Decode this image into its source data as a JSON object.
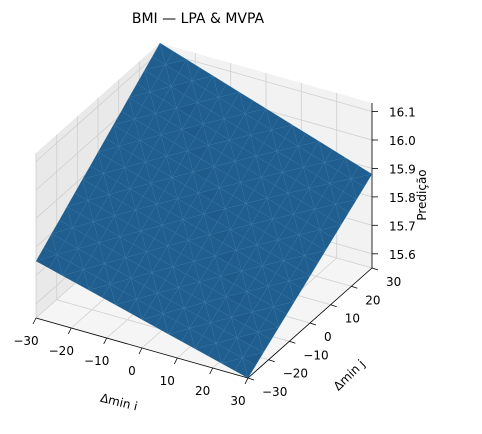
{
  "chart_data": {
    "type": "surface",
    "title": "BMI — LPA & MVPA",
    "xlabel": "Δmin i",
    "ylabel": "Δmin j",
    "zlabel": "Predição",
    "xlim": [
      -30,
      30
    ],
    "ylim": [
      -30,
      30
    ],
    "zlim": [
      15.55,
      16.13
    ],
    "x_ticks": [
      "−30",
      "−20",
      "−10",
      "0",
      "10",
      "20",
      "30"
    ],
    "y_ticks": [
      "−30",
      "−20",
      "−10",
      "0",
      "10",
      "20",
      "30"
    ],
    "z_ticks": [
      "15.6",
      "15.7",
      "15.8",
      "15.9",
      "16.0",
      "16.1"
    ],
    "surface_corners": [
      {
        "x": -30,
        "y": -30,
        "z": 15.75
      },
      {
        "x": 30,
        "y": -30,
        "z": 15.55
      },
      {
        "x": 30,
        "y": 30,
        "z": 15.88
      },
      {
        "x": -30,
        "y": 30,
        "z": 16.13
      }
    ],
    "surface_color": "#1f5c8c",
    "grid": true
  }
}
